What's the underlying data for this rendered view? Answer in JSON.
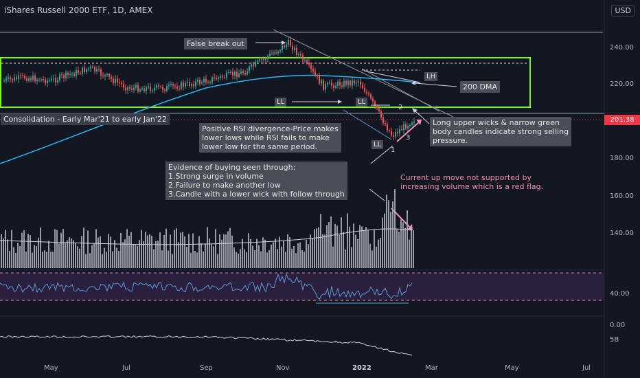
{
  "header": {
    "title": "iShares Russell 2000 ETF, 1D, AMEX",
    "currency": "USD"
  },
  "price_axis": [
    "240.00",
    "220.00",
    "180.00",
    "160.00",
    "140.00"
  ],
  "rsi_axis": "40.00",
  "obv_axis": [
    "0.00",
    "5B"
  ],
  "current_price": "201.38",
  "time_axis": [
    {
      "label": "May"
    },
    {
      "label": "Jul"
    },
    {
      "label": "Sep"
    },
    {
      "label": "Nov"
    },
    {
      "label": "2022"
    },
    {
      "label": "Mar"
    },
    {
      "label": "May"
    },
    {
      "label": "Jul"
    }
  ],
  "annotations": {
    "false_breakout": "False break out",
    "consolidation": "Consolidation - Early Mar'21 to early Jan'22",
    "rsi_divergence": "Positive RSI divergence-Price makes\nlower lows while RSI fails to make\nlower low for the same period.",
    "buying": "Evidence of buying seen through:\n1.Strong surge in volume\n2.Failure to make another low\n3.Candle with a lower wick with follow through",
    "upper_wicks": "Long upper wicks & narrow green\nbody candles indicate strong selling\npressure.",
    "volume_flag": "Current up move not supported by\nincreasing volume which is a red flag.",
    "dma": "200 DMA",
    "ll1": "LL",
    "ll2": "LL",
    "ll3": "LL",
    "lh": "LH",
    "n1": "1",
    "n2": "2",
    "n3": "3"
  },
  "colors": {
    "background": "#131722",
    "up": "#26a69a",
    "down": "#ef5350",
    "box": "#7cfc00",
    "dma": "#29b6f6",
    "rsi": "#5b9bd5",
    "alert": "#f48fb1"
  },
  "chart_data": {
    "type": "candlestick",
    "symbol": "iShares Russell 2000 ETF",
    "interval": "1D",
    "exchange": "AMEX",
    "current_price": 201.38,
    "consolidation_range": [
      211,
      232
    ],
    "moving_average": "200 DMA",
    "price_path": [
      {
        "date": "2021-03",
        "close": 222
      },
      {
        "date": "2021-04",
        "close": 224
      },
      {
        "date": "2021-05",
        "close": 222
      },
      {
        "date": "2021-06",
        "close": 229
      },
      {
        "date": "2021-07",
        "close": 218
      },
      {
        "date": "2021-08",
        "close": 218
      },
      {
        "date": "2021-09",
        "close": 222
      },
      {
        "date": "2021-10",
        "close": 227
      },
      {
        "date": "2021-11",
        "close": 243
      },
      {
        "date": "2021-12",
        "close": 219
      },
      {
        "date": "2022-01-05",
        "close": 222
      },
      {
        "date": "2022-01-25",
        "close": 192
      },
      {
        "date": "2022-02",
        "close": 201
      }
    ]
  }
}
